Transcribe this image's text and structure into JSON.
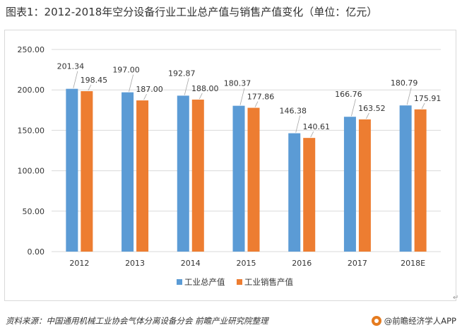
{
  "title": "图表1：2012-2018年空分设备行业工业总产值与销售产值变化（单位：亿元）",
  "source": "资料来源：中国通用机械工业协会气体分离设备分会 前瞻产业研究院整理",
  "brand": "@前瞻经济学人APP",
  "colors": {
    "series1": "#5b9bd5",
    "series2": "#ed7d31",
    "grid": "#d9d9d9",
    "axis_text": "#333333"
  },
  "chart_data": {
    "type": "bar",
    "title": "图表1：2012-2018年空分设备行业工业总产值与销售产值变化（单位：亿元）",
    "xlabel": "",
    "ylabel": "",
    "categories": [
      "2012",
      "2013",
      "2014",
      "2015",
      "2016",
      "2017",
      "2018E"
    ],
    "series": [
      {
        "name": "工业总产值",
        "values": [
          201.34,
          197.0,
          192.87,
          180.37,
          146.38,
          166.76,
          180.79
        ]
      },
      {
        "name": "工业销售产值",
        "values": [
          198.45,
          187.0,
          188.0,
          177.86,
          140.61,
          163.52,
          175.91
        ]
      }
    ],
    "ylim": [
      0,
      250
    ],
    "yticks": [
      "0.00",
      "50.00",
      "100.00",
      "150.00",
      "200.00",
      "250.00"
    ],
    "grid": true,
    "legend": "bottom-center"
  }
}
